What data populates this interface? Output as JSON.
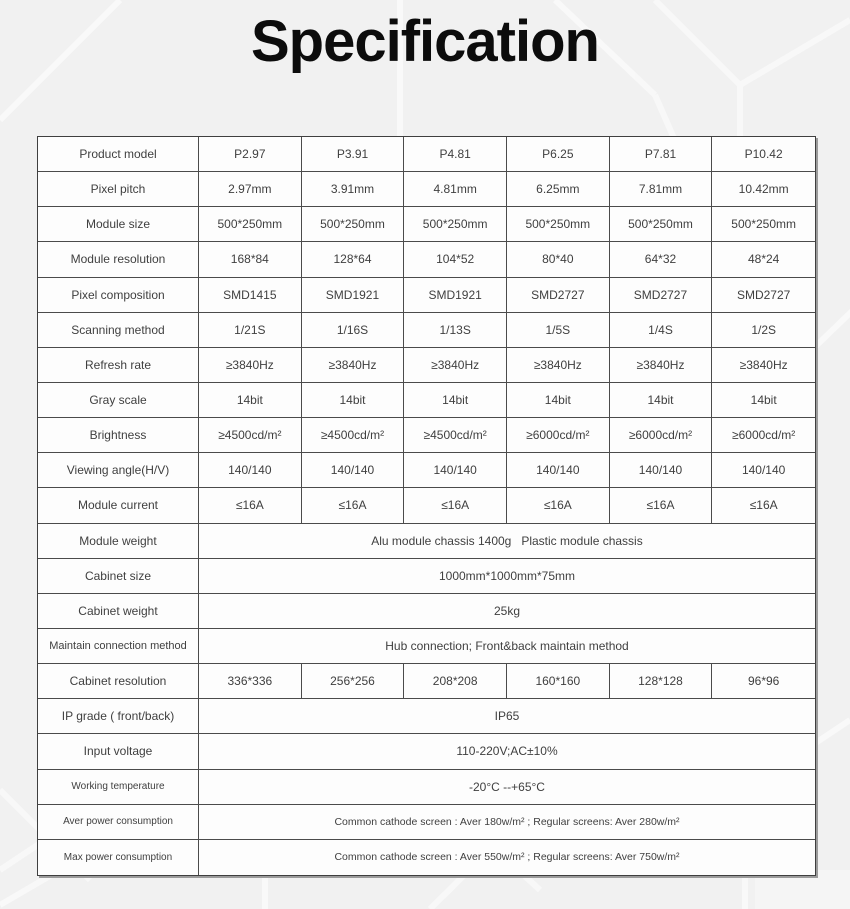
{
  "page": {
    "title": "Specification",
    "background_color": "#f1f1f1",
    "pattern_color": "#ffffff",
    "title_color": "#0c0c0c",
    "table_border_color": "#4b4b4b",
    "table_text_color": "#3f3f3f",
    "cell_background": "#fdfdfd"
  },
  "table": {
    "rows": [
      {
        "label": "Product model",
        "values": [
          "P2.97",
          "P3.91",
          "P4.81",
          "P6.25",
          "P7.81",
          "P10.42"
        ]
      },
      {
        "label": "Pixel pitch",
        "values": [
          "2.97mm",
          "3.91mm",
          "4.81mm",
          "6.25mm",
          "7.81mm",
          "10.42mm"
        ]
      },
      {
        "label": "Module size",
        "values": [
          "500*250mm",
          "500*250mm",
          "500*250mm",
          "500*250mm",
          "500*250mm",
          "500*250mm"
        ]
      },
      {
        "label": "Module resolution",
        "values": [
          "168*84",
          "128*64",
          "104*52",
          "80*40",
          "64*32",
          "48*24"
        ]
      },
      {
        "label": "Pixel composition",
        "values": [
          "SMD1415",
          "SMD1921",
          "SMD1921",
          "SMD2727",
          "SMD2727",
          "SMD2727"
        ]
      },
      {
        "label": "Scanning method",
        "values": [
          "1/21S",
          "1/16S",
          "1/13S",
          "1/5S",
          "1/4S",
          "1/2S"
        ]
      },
      {
        "label": "Refresh rate",
        "values": [
          "≥3840Hz",
          "≥3840Hz",
          "≥3840Hz",
          "≥3840Hz",
          "≥3840Hz",
          "≥3840Hz"
        ]
      },
      {
        "label": "Gray scale",
        "values": [
          "14bit",
          "14bit",
          "14bit",
          "14bit",
          "14bit",
          "14bit"
        ]
      },
      {
        "label": "Brightness",
        "values": [
          "≥4500cd/m²",
          "≥4500cd/m²",
          "≥4500cd/m²",
          "≥6000cd/m²",
          "≥6000cd/m²",
          "≥6000cd/m²"
        ]
      },
      {
        "label": "Viewing angle(H/V)",
        "values": [
          "140/140",
          "140/140",
          "140/140",
          "140/140",
          "140/140",
          "140/140"
        ]
      },
      {
        "label": "Module current",
        "values": [
          "≤16A",
          "≤16A",
          "≤16A",
          "≤16A",
          "≤16A",
          "≤16A"
        ]
      },
      {
        "label": "Module weight",
        "span": "Alu module chassis 1400g   Plastic module chassis"
      },
      {
        "label": "Cabinet size",
        "span": "1000mm*1000mm*75mm"
      },
      {
        "label": "Cabinet weight",
        "span": "25kg"
      },
      {
        "label": "Maintain connection method",
        "span": "Hub connection; Front&back maintain method"
      },
      {
        "label": "Cabinet resolution",
        "values": [
          "336*336",
          "256*256",
          "208*208",
          "160*160",
          "128*128",
          "96*96"
        ]
      },
      {
        "label": "IP grade ( front/back)",
        "span": "IP65"
      },
      {
        "label": "Input voltage",
        "span": "110-220V;AC±10%"
      },
      {
        "label": "Working temperature",
        "span": "-20°C --+65°C"
      },
      {
        "label": "Aver power consumption",
        "span": "Common cathode screen : Aver 180w/m² ; Regular screens: Aver 280w/m²"
      },
      {
        "label": "Max power consumption",
        "span": "Common cathode screen : Aver 550w/m² ; Regular screens: Aver 750w/m²"
      }
    ]
  }
}
